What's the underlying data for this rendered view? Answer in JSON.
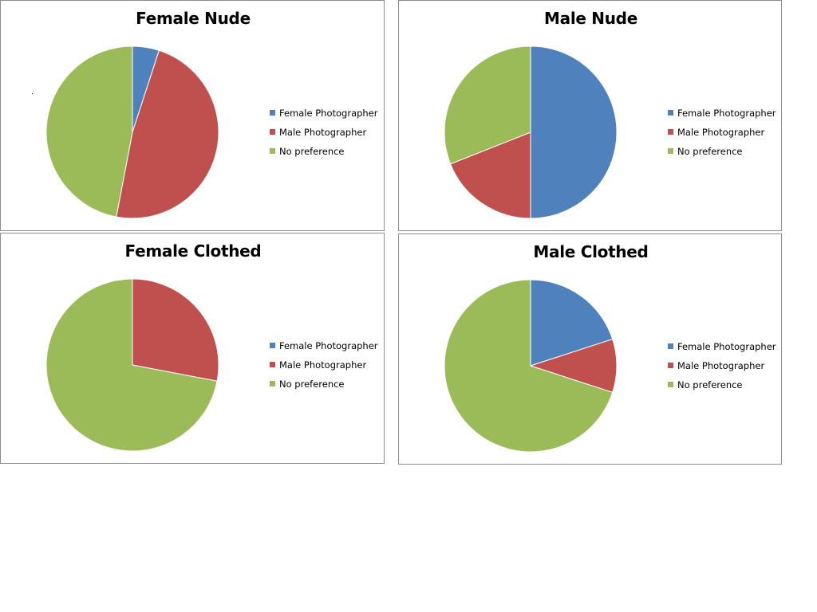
{
  "legend_labels": [
    "Female Photographer",
    "Male Photographer",
    "No preference"
  ],
  "colors": [
    "#4f81bd",
    "#c0504d",
    "#9bbb59"
  ],
  "chart_data": [
    {
      "type": "pie",
      "title": "Female Nude",
      "categories": [
        "Female Photographer",
        "Male Photographer",
        "No preference"
      ],
      "values": [
        5,
        48,
        47
      ]
    },
    {
      "type": "pie",
      "title": "Male Nude",
      "categories": [
        "Female Photographer",
        "Male Photographer",
        "No preference"
      ],
      "values": [
        50,
        19,
        31
      ]
    },
    {
      "type": "pie",
      "title": "Female Clothed",
      "categories": [
        "Female Photographer",
        "Male Photographer",
        "No preference"
      ],
      "values": [
        0,
        28,
        72
      ]
    },
    {
      "type": "pie",
      "title": "Male Clothed",
      "categories": [
        "Female Photographer",
        "Male Photographer",
        "No preference"
      ],
      "values": [
        20,
        10,
        70
      ]
    }
  ]
}
